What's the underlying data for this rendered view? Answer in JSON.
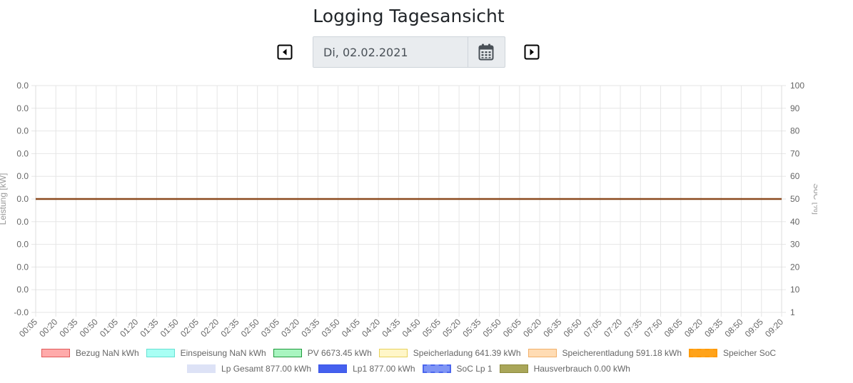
{
  "page": {
    "title": "Logging Tagesansicht",
    "date_value": "Di, 02.02.2021"
  },
  "icons": {
    "prev": "caret-left-square-icon",
    "calendar": "calendar-icon",
    "next": "caret-right-square-icon"
  },
  "chart_data": {
    "type": "line",
    "x": [
      "00:05",
      "00:20",
      "00:35",
      "00:50",
      "01:05",
      "01:20",
      "01:35",
      "01:50",
      "02:05",
      "02:20",
      "02:35",
      "02:50",
      "03:05",
      "03:20",
      "03:35",
      "03:50",
      "04:05",
      "04:20",
      "04:35",
      "04:50",
      "05:05",
      "05:20",
      "05:35",
      "05:50",
      "06:05",
      "06:20",
      "06:35",
      "06:50",
      "07:05",
      "07:20",
      "07:35",
      "07:50",
      "08:05",
      "08:20",
      "08:35",
      "08:50",
      "09:05",
      "09:20"
    ],
    "y_left": {
      "label": "Leistung [kW]",
      "ticks": [
        "0.0",
        "0.0",
        "0.0",
        "0.0",
        "0.0",
        "0.0",
        "0.0",
        "0.0",
        "0.0",
        "0.0",
        "-0.0"
      ]
    },
    "y_right": {
      "label": "SoC [%]",
      "ticks": [
        "100",
        "90",
        "80",
        "70",
        "60",
        "50",
        "40",
        "30",
        "20",
        "10",
        "1"
      ]
    },
    "series": [
      {
        "name": "Bezug NaN kWh",
        "fill": "#ffaaaa",
        "stroke": "#e05a5a",
        "dashed": false
      },
      {
        "name": "Einspeisung NaN kWh",
        "fill": "#a8fff4",
        "stroke": "#66e0d2",
        "dashed": false
      },
      {
        "name": "PV 6673.45 kWh",
        "fill": "#a8f5c0",
        "stroke": "#1f9a3c",
        "dashed": false
      },
      {
        "name": "Speicherladung 641.39 kWh",
        "fill": "#fff6c8",
        "stroke": "#e8d25c",
        "dashed": false
      },
      {
        "name": "Speicherentladung 591.18 kWh",
        "fill": "#ffdcb4",
        "stroke": "#f2b06a",
        "dashed": false
      },
      {
        "name": "Speicher SoC",
        "fill": "#ffa31a",
        "stroke": "#ff9a00",
        "dashed": true
      },
      {
        "name": "Lp Gesamt 877.00 kWh",
        "fill": "#dde2f6",
        "stroke": "#dde2f6",
        "dashed": false
      },
      {
        "name": "Lp1 877.00 kWh",
        "fill": "#4560ee",
        "stroke": "#3a55e8",
        "dashed": false
      },
      {
        "name": "SoC Lp 1",
        "fill": "#7f95f5",
        "stroke": "#4b66ee",
        "dashed": true
      },
      {
        "name": "Hausverbrauch 0.00 kWh",
        "fill": "#a9a659",
        "stroke": "#8c8a3c",
        "dashed": false
      }
    ],
    "flat_line_value": 0.0,
    "flat_line_color": "#8b4a1f",
    "grid": true,
    "legend_position": "bottom"
  }
}
